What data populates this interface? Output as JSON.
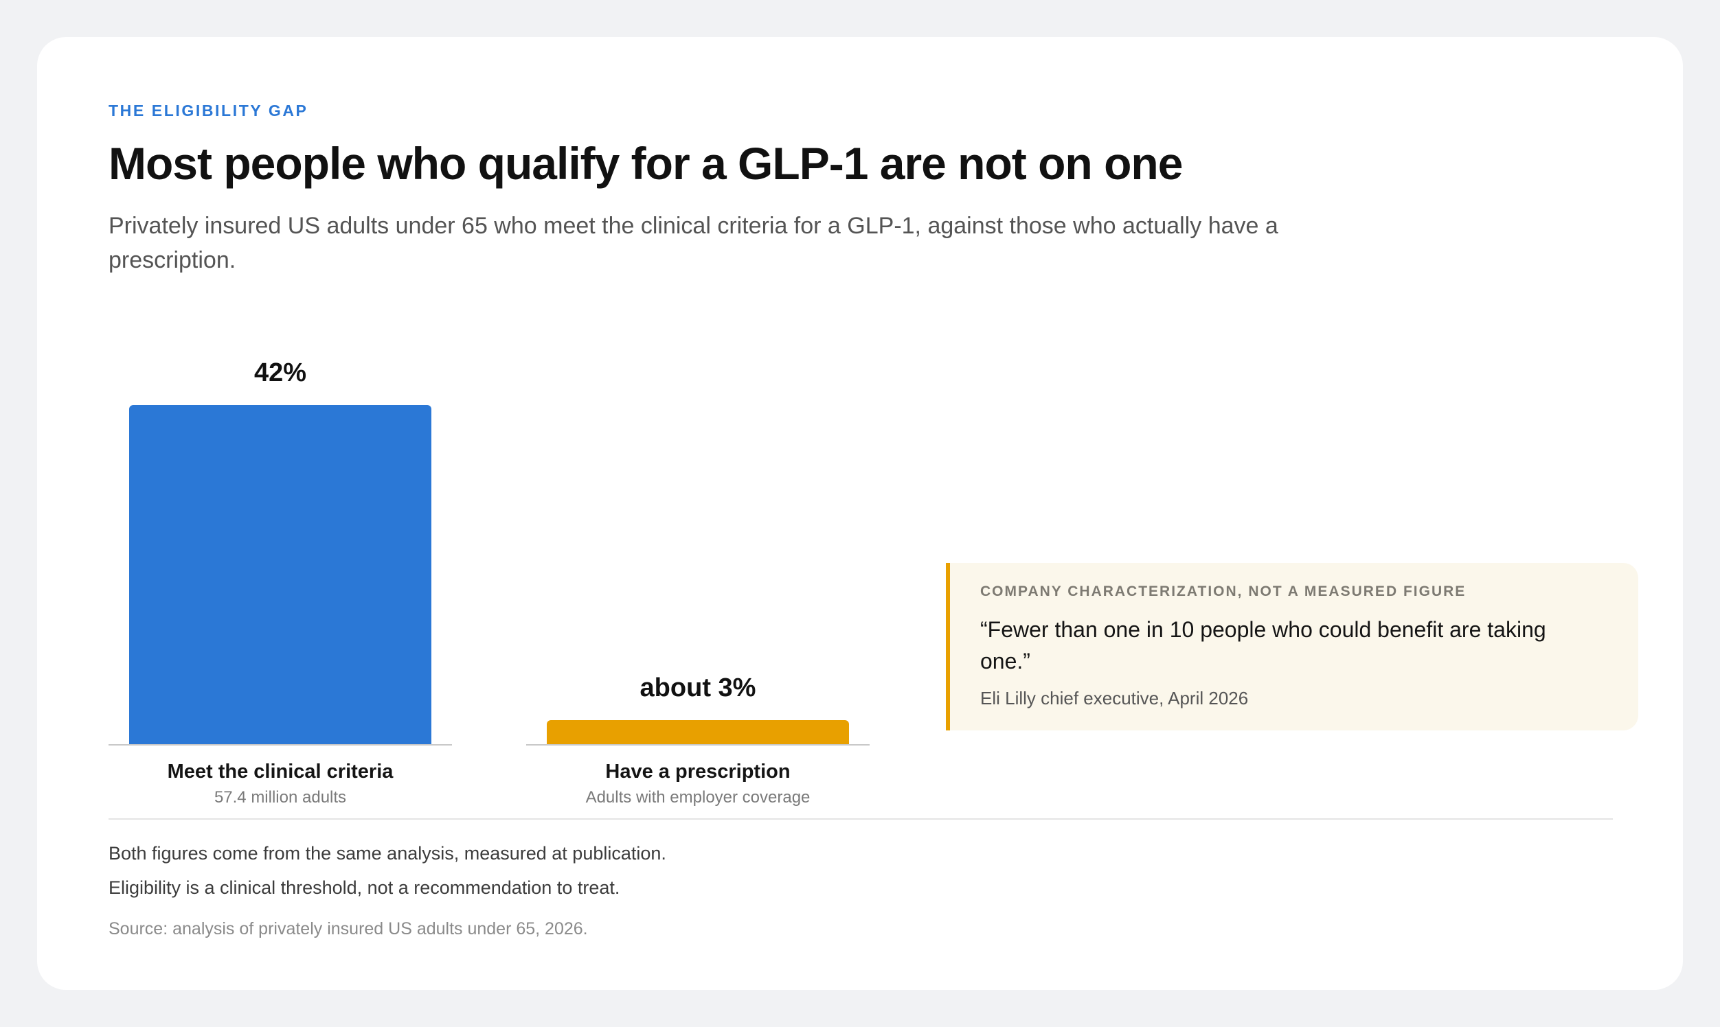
{
  "eyebrow": "THE ELIGIBILITY GAP",
  "title": "Most people who qualify for a GLP-1 are not on one",
  "subtitle": "Privately insured US adults under 65 who meet the clinical criteria for a GLP-1, against those who actually have a prescription.",
  "chart_data": {
    "type": "bar",
    "categories": [
      "Meet the clinical criteria",
      "Have a prescription"
    ],
    "category_subtitles": [
      "57.4 million adults",
      "Adults with employer coverage"
    ],
    "values": [
      42,
      3
    ],
    "value_labels": [
      "42%",
      "about 3%"
    ],
    "colors": [
      "#2b78d6",
      "#e8a000"
    ],
    "ylim": [
      0,
      42
    ],
    "grid": false
  },
  "callout": {
    "tag": "COMPANY CHARACTERIZATION, NOT A MEASURED FIGURE",
    "quote": "“Fewer than one in 10 people who could benefit are taking one.”",
    "attribution": "Eli Lilly chief executive, April 2026"
  },
  "notes": [
    "Both figures come from the same analysis, measured at publication.",
    "Eligibility is a clinical threshold, not a recommendation to treat."
  ],
  "source": "Source: analysis of privately insured US adults under 65, 2026."
}
